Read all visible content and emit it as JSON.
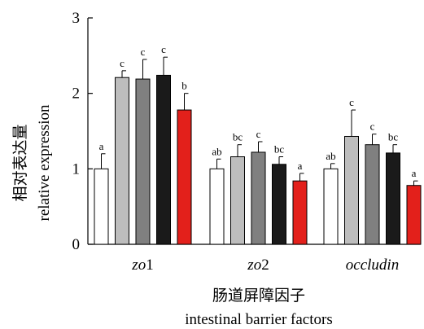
{
  "chart_data": {
    "type": "bar",
    "ylabel_cn": "相对表达量",
    "ylabel_en": "relative expression",
    "xlabel_cn": "肠道屏障因子",
    "xlabel_en": "intestinal barrier factors",
    "ylim": [
      0,
      3
    ],
    "yticks": [
      "0",
      "1",
      "2",
      "3"
    ],
    "categories": [
      {
        "prefix": "zo",
        "suffix": "1"
      },
      {
        "prefix": "zo",
        "suffix": "2"
      },
      {
        "prefix": "occludin",
        "suffix": ""
      }
    ],
    "series": [
      {
        "color": "#ffffff",
        "values": [
          1.0,
          1.0,
          1.0
        ],
        "errors": [
          0.2,
          0.13,
          0.07
        ],
        "labels": [
          "a",
          "ab",
          "ab"
        ]
      },
      {
        "color": "#bdbdbd",
        "values": [
          2.21,
          1.16,
          1.43
        ],
        "errors": [
          0.09,
          0.16,
          0.35
        ],
        "labels": [
          "c",
          "bc",
          "c"
        ]
      },
      {
        "color": "#808080",
        "values": [
          2.19,
          1.22,
          1.32
        ],
        "errors": [
          0.26,
          0.14,
          0.14
        ],
        "labels": [
          "c",
          "c",
          "c"
        ]
      },
      {
        "color": "#1a1a1a",
        "values": [
          2.24,
          1.06,
          1.21
        ],
        "errors": [
          0.24,
          0.1,
          0.11
        ],
        "labels": [
          "c",
          "bc",
          "bc"
        ]
      },
      {
        "color": "#e3201b",
        "values": [
          1.78,
          0.84,
          0.78
        ],
        "errors": [
          0.22,
          0.1,
          0.06
        ],
        "labels": [
          "b",
          "a",
          "a"
        ]
      }
    ]
  }
}
